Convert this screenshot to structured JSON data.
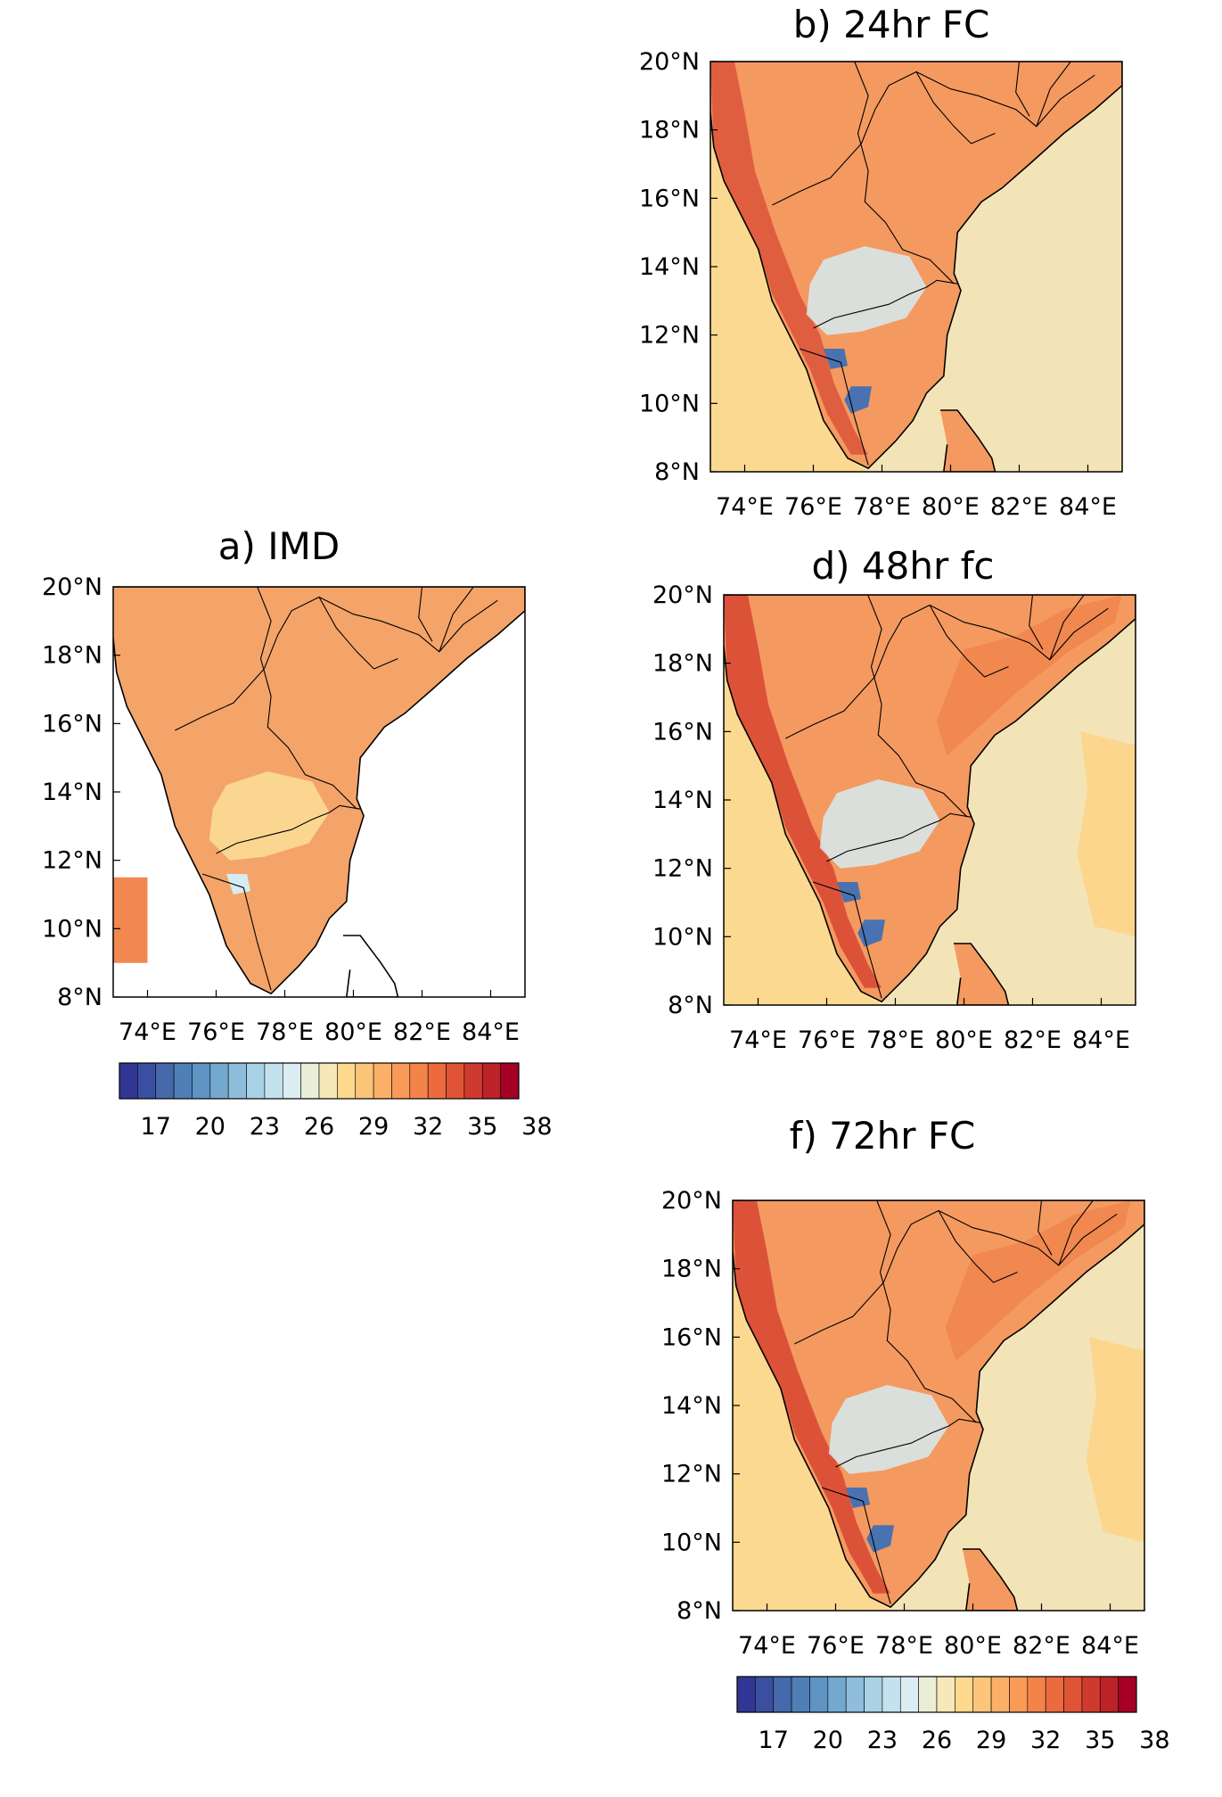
{
  "panels": [
    {
      "id": "a",
      "title": "a) IMD",
      "kind": "gridded",
      "has_colorbar": true
    },
    {
      "id": "b",
      "title": "b) 24hr FC",
      "kind": "model",
      "has_colorbar": false
    },
    {
      "id": "d",
      "title": "d) 48hr fc",
      "kind": "model",
      "has_colorbar": false
    },
    {
      "id": "f",
      "title": "f) 72hr FC",
      "kind": "model",
      "has_colorbar": true
    }
  ],
  "lat_labels": [
    "20°N",
    "18°N",
    "16°N",
    "14°N",
    "12°N",
    "10°N",
    "8°N"
  ],
  "lon_labels": [
    "74°E",
    "76°E",
    "78°E",
    "80°E",
    "82°E",
    "84°E"
  ],
  "colorbar": {
    "tick_labels": [
      "17",
      "20",
      "23",
      "26",
      "29",
      "32",
      "35",
      "38"
    ],
    "colors": [
      "#313695",
      "#3a4f9f",
      "#4569aa",
      "#4f7fb7",
      "#5f93c3",
      "#74a9cf",
      "#8fbedc",
      "#a9d2e6",
      "#c4e2ee",
      "#dcedf2",
      "#eaeed6",
      "#f6e8b8",
      "#fdd98e",
      "#fdc57a",
      "#fcb067",
      "#f99a57",
      "#f4834a",
      "#ec6b3e",
      "#e05436",
      "#cf3a2e",
      "#bc2328",
      "#a50026"
    ]
  },
  "colors": {
    "ocean_model": "#f3e4b8",
    "west_sea": "#fbd991",
    "east_warm_patch": "#fbd68c",
    "land_base": "#f49a60",
    "land_warm": "#f08850",
    "ghats_hot": "#d94a35",
    "hills_cool": "#d6ebf2",
    "hills_cold": "#4a72b0",
    "imd_land": "#f4a469",
    "imd_cool": "#fbd691"
  }
}
